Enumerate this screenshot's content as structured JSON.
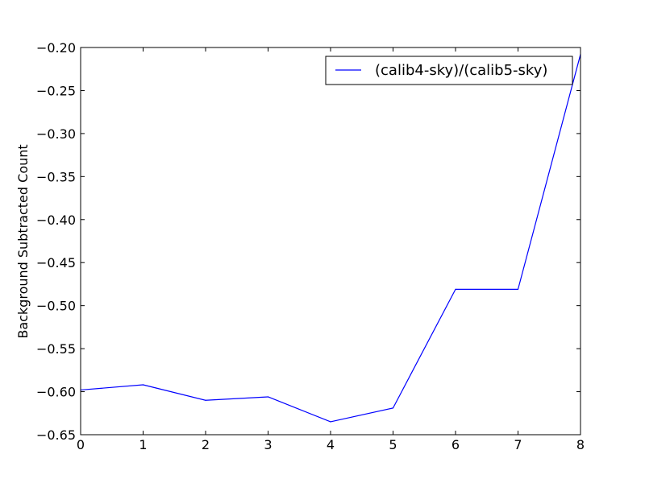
{
  "chart_data": {
    "type": "line",
    "title": "",
    "xlabel": "",
    "ylabel": "Background Subtracted Count",
    "xlim": [
      0,
      8
    ],
    "ylim": [
      -0.65,
      -0.2
    ],
    "x_ticks": [
      0,
      1,
      2,
      3,
      4,
      5,
      6,
      7,
      8
    ],
    "y_ticks": [
      -0.65,
      -0.6,
      -0.55,
      -0.5,
      -0.45,
      -0.4,
      -0.35,
      -0.3,
      -0.25,
      -0.2
    ],
    "x_tick_labels": [
      "0",
      "1",
      "2",
      "3",
      "4",
      "5",
      "6",
      "7",
      "8"
    ],
    "y_tick_labels": [
      "−0.65",
      "−0.60",
      "−0.55",
      "−0.50",
      "−0.45",
      "−0.40",
      "−0.35",
      "−0.30",
      "−0.25",
      "−0.20"
    ],
    "grid": false,
    "legend": "top-right",
    "series": [
      {
        "name": "(calib4-sky)/(calib5-sky)",
        "color": "#0000ff",
        "x": [
          0,
          1,
          2,
          3,
          4,
          5,
          6,
          7,
          8
        ],
        "y": [
          -0.598,
          -0.592,
          -0.61,
          -0.606,
          -0.635,
          -0.619,
          -0.481,
          -0.481,
          -0.208
        ]
      }
    ]
  }
}
